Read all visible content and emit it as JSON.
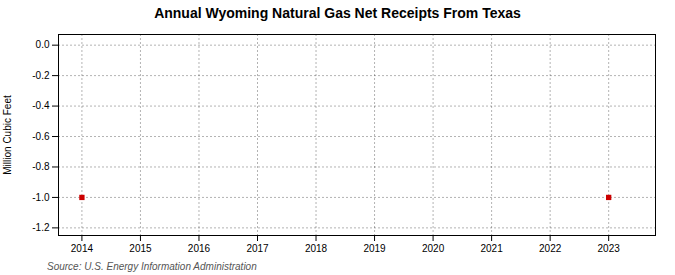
{
  "chart_data": {
    "type": "scatter",
    "title": "Annual Wyoming Natural Gas Net Receipts From Texas",
    "ylabel": "Million Cubic Feet",
    "source": "Source: U.S. Energy Information Administration",
    "x": [
      2014,
      2023
    ],
    "values": [
      -1,
      -1
    ],
    "color": "#cc0000",
    "marker": "square",
    "xlim": [
      2013.6,
      2023.8
    ],
    "ylim": [
      -1.25,
      0.07
    ],
    "xticks": [
      2014,
      2015,
      2016,
      2017,
      2018,
      2019,
      2020,
      2021,
      2022,
      2023
    ],
    "yticks": [
      {
        "value": 0,
        "label": "0.0"
      },
      -0.2,
      -0.4,
      -0.6,
      -0.8,
      {
        "value": -1,
        "label": "-1.0"
      },
      -1.2
    ],
    "grid": true
  }
}
